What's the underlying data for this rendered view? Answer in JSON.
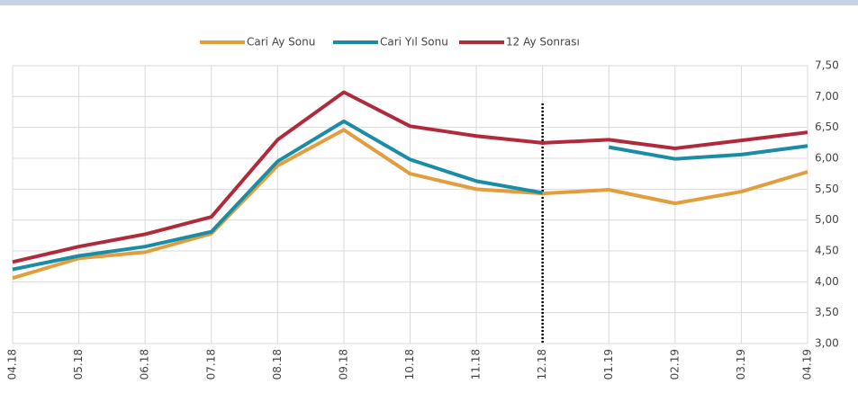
{
  "chart_data": {
    "type": "line",
    "categories": [
      "04.18",
      "05.18",
      "06.18",
      "07.18",
      "08.18",
      "09.18",
      "10.18",
      "11.18",
      "12.18",
      "01.19",
      "02.19",
      "03.19",
      "04.19"
    ],
    "series": [
      {
        "name": "Cari Ay Sonu",
        "color": "#e29d3d",
        "values": [
          4.06,
          4.38,
          4.48,
          4.78,
          5.88,
          6.46,
          5.75,
          5.5,
          5.43,
          5.49,
          5.27,
          5.46,
          5.78
        ]
      },
      {
        "name": "Cari Yıl Sonu",
        "color": "#1a8ca6",
        "values": [
          4.2,
          4.42,
          4.57,
          4.81,
          5.95,
          6.6,
          5.98,
          5.63,
          5.44,
          6.18,
          5.99,
          6.06,
          6.2
        ],
        "break_after": "12.18"
      },
      {
        "name": "12 Ay Sonrası",
        "color": "#b02a3c",
        "values": [
          4.32,
          4.57,
          4.77,
          5.05,
          6.3,
          7.07,
          6.52,
          6.36,
          6.25,
          6.3,
          6.16,
          6.29,
          6.42
        ]
      }
    ],
    "ylim": [
      3,
      7.5
    ],
    "yticks": [
      {
        "value": 3,
        "label": "3,00"
      },
      {
        "value": 3.5,
        "label": "3,50"
      },
      {
        "value": 4,
        "label": "4,00"
      },
      {
        "value": 4.5,
        "label": "4,50"
      },
      {
        "value": 5,
        "label": "5,00"
      },
      {
        "value": 5.5,
        "label": "5,50"
      },
      {
        "value": 6,
        "label": "6,00"
      },
      {
        "value": 6.5,
        "label": "6,50"
      },
      {
        "value": 7,
        "label": "7,00"
      },
      {
        "value": 7.5,
        "label": "7,50"
      }
    ],
    "grid": true,
    "legend": "top",
    "vline": "12.18"
  }
}
